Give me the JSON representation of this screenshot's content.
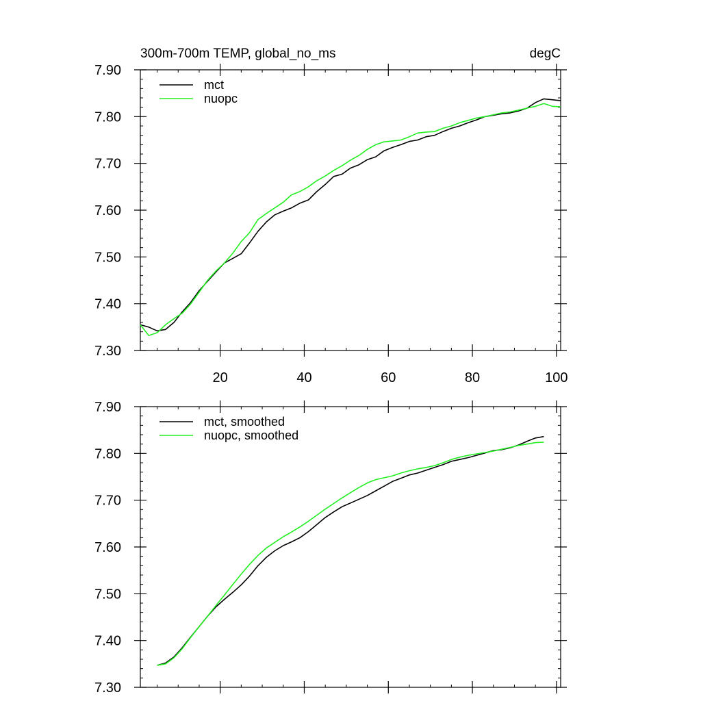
{
  "chart_data": [
    {
      "type": "line",
      "title": "300m-700m TEMP, global_no_ms",
      "units": "degC",
      "xlim": [
        1,
        101
      ],
      "ylim": [
        7.3,
        7.9
      ],
      "xticks": [
        20,
        40,
        60,
        80,
        100
      ],
      "xtick_labels": [
        "20",
        "40",
        "60",
        "80",
        "100"
      ],
      "yticks": [
        7.3,
        7.4,
        7.5,
        7.6,
        7.7,
        7.8,
        7.9
      ],
      "ytick_labels": [
        "7.30",
        "7.40",
        "7.50",
        "7.60",
        "7.70",
        "7.80",
        "7.90"
      ],
      "legend_position": "top-left",
      "series": [
        {
          "name": "mct",
          "color": "#000000",
          "x": [
            1,
            3,
            5,
            7,
            9,
            11,
            13,
            15,
            17,
            19,
            21,
            23,
            25,
            27,
            29,
            31,
            33,
            35,
            37,
            39,
            41,
            43,
            45,
            47,
            49,
            51,
            53,
            55,
            57,
            59,
            61,
            63,
            65,
            67,
            69,
            71,
            73,
            75,
            77,
            79,
            81,
            83,
            85,
            87,
            89,
            91,
            93,
            95,
            97,
            99,
            101
          ],
          "values": [
            7.355,
            7.35,
            7.342,
            7.345,
            7.36,
            7.383,
            7.403,
            7.428,
            7.448,
            7.468,
            7.487,
            7.497,
            7.507,
            7.53,
            7.555,
            7.575,
            7.59,
            7.598,
            7.605,
            7.615,
            7.622,
            7.64,
            7.655,
            7.672,
            7.677,
            7.69,
            7.697,
            7.708,
            7.714,
            7.727,
            7.734,
            7.74,
            7.747,
            7.75,
            7.757,
            7.76,
            7.768,
            7.775,
            7.78,
            7.787,
            7.793,
            7.8,
            7.803,
            7.806,
            7.808,
            7.812,
            7.818,
            7.83,
            7.838,
            7.836,
            7.834
          ]
        },
        {
          "name": "nuopc",
          "color": "#22ee22",
          "x": [
            1,
            3,
            5,
            7,
            9,
            11,
            13,
            15,
            17,
            19,
            21,
            23,
            25,
            27,
            29,
            31,
            33,
            35,
            37,
            39,
            41,
            43,
            45,
            47,
            49,
            51,
            53,
            55,
            57,
            59,
            61,
            63,
            65,
            67,
            69,
            71,
            73,
            75,
            77,
            79,
            81,
            83,
            85,
            87,
            89,
            91,
            93,
            95,
            97,
            99,
            101
          ],
          "values": [
            7.355,
            7.332,
            7.338,
            7.355,
            7.368,
            7.38,
            7.4,
            7.425,
            7.45,
            7.47,
            7.487,
            7.508,
            7.533,
            7.552,
            7.58,
            7.593,
            7.605,
            7.617,
            7.633,
            7.64,
            7.65,
            7.663,
            7.673,
            7.685,
            7.695,
            7.707,
            7.717,
            7.73,
            7.74,
            7.746,
            7.748,
            7.75,
            7.757,
            7.765,
            7.767,
            7.768,
            7.775,
            7.78,
            7.787,
            7.792,
            7.797,
            7.8,
            7.804,
            7.808,
            7.81,
            7.814,
            7.818,
            7.822,
            7.828,
            7.822,
            7.821
          ]
        }
      ]
    },
    {
      "type": "line",
      "xlim": [
        1,
        101
      ],
      "ylim": [
        7.3,
        7.9
      ],
      "xticks": [
        20,
        40,
        60,
        80,
        100
      ],
      "yticks": [
        7.3,
        7.4,
        7.5,
        7.6,
        7.7,
        7.8,
        7.9
      ],
      "ytick_labels": [
        "7.30",
        "7.40",
        "7.50",
        "7.60",
        "7.70",
        "7.80",
        "7.90"
      ],
      "legend_position": "top-left",
      "series": [
        {
          "name": "mct, smoothed",
          "color": "#000000",
          "x": [
            5,
            7,
            9,
            11,
            13,
            15,
            17,
            19,
            21,
            23,
            25,
            27,
            29,
            31,
            33,
            35,
            37,
            39,
            41,
            43,
            45,
            47,
            49,
            51,
            53,
            55,
            57,
            59,
            61,
            63,
            65,
            67,
            69,
            71,
            73,
            75,
            77,
            79,
            81,
            83,
            85,
            87,
            89,
            91,
            93,
            95,
            97
          ],
          "values": [
            7.347,
            7.352,
            7.365,
            7.385,
            7.408,
            7.43,
            7.452,
            7.472,
            7.488,
            7.503,
            7.519,
            7.538,
            7.56,
            7.578,
            7.592,
            7.603,
            7.611,
            7.62,
            7.633,
            7.648,
            7.663,
            7.675,
            7.686,
            7.694,
            7.702,
            7.71,
            7.72,
            7.73,
            7.74,
            7.747,
            7.754,
            7.758,
            7.764,
            7.77,
            7.776,
            7.783,
            7.787,
            7.791,
            7.796,
            7.801,
            7.806,
            7.808,
            7.812,
            7.818,
            7.826,
            7.833,
            7.836
          ]
        },
        {
          "name": "nuopc, smoothed",
          "color": "#22ee22",
          "x": [
            5,
            7,
            9,
            11,
            13,
            15,
            17,
            19,
            21,
            23,
            25,
            27,
            29,
            31,
            33,
            35,
            37,
            39,
            41,
            43,
            45,
            47,
            49,
            51,
            53,
            55,
            57,
            59,
            61,
            63,
            65,
            67,
            69,
            71,
            73,
            75,
            77,
            79,
            81,
            83,
            85,
            87,
            89,
            91,
            93,
            95,
            97
          ],
          "values": [
            7.347,
            7.35,
            7.363,
            7.383,
            7.407,
            7.43,
            7.452,
            7.475,
            7.497,
            7.52,
            7.542,
            7.563,
            7.582,
            7.598,
            7.61,
            7.622,
            7.632,
            7.643,
            7.655,
            7.668,
            7.681,
            7.693,
            7.705,
            7.716,
            7.727,
            7.737,
            7.744,
            7.748,
            7.752,
            7.758,
            7.763,
            7.767,
            7.77,
            7.774,
            7.78,
            7.787,
            7.792,
            7.796,
            7.799,
            7.802,
            7.805,
            7.809,
            7.813,
            7.817,
            7.82,
            7.823,
            7.824
          ]
        }
      ]
    }
  ]
}
